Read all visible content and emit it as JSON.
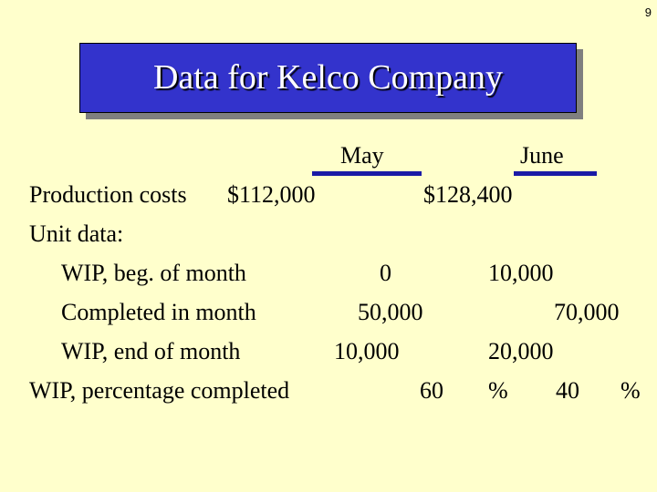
{
  "slide_number": "9",
  "title": "Data for Kelco Company",
  "columns": {
    "may": "May",
    "june": "June"
  },
  "rows": {
    "production_costs": {
      "label": "Production costs",
      "may": "$112,000",
      "june": "$128,400"
    },
    "unit_data": {
      "label": "Unit data:"
    },
    "wip_beg": {
      "label": "WIP, beg. of month",
      "may": "0",
      "june": "10,000"
    },
    "completed": {
      "label": "Completed in month",
      "may": "50,000",
      "june": "70,000"
    },
    "wip_end": {
      "label": "WIP, end of month",
      "may": "10,000",
      "june": "20,000"
    },
    "wip_pct": {
      "label": "WIP, percentage completed",
      "may": "60",
      "may_unit": "%",
      "june": "40",
      "june_unit": "%"
    }
  },
  "colors": {
    "background": "#ffffcc",
    "title_box": "#3333cc",
    "rule": "#1a1aa6"
  }
}
